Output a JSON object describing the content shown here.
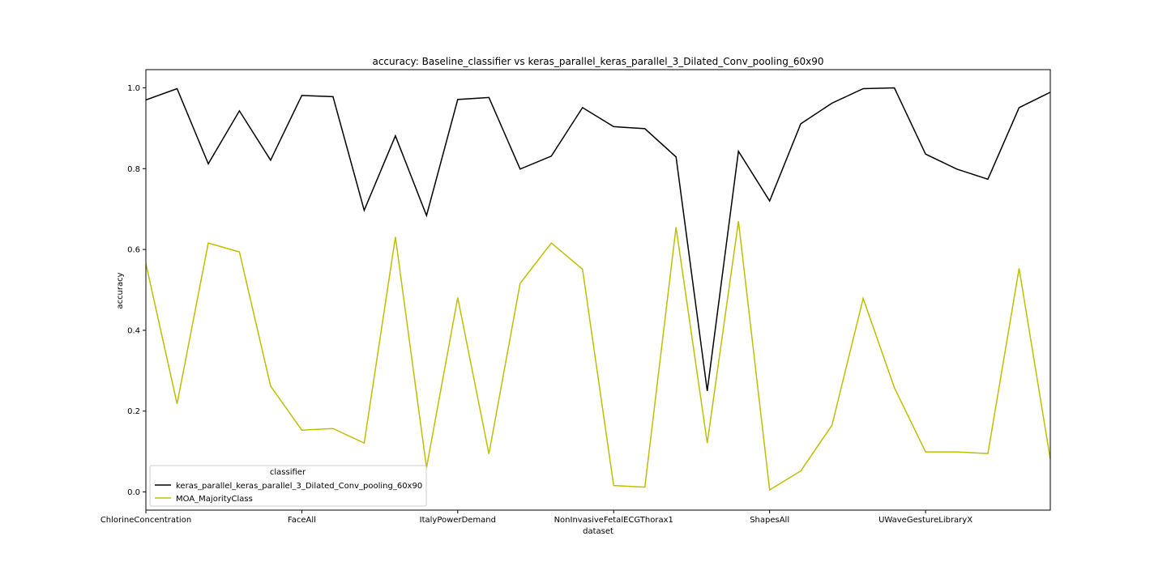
{
  "chart_data": {
    "type": "line",
    "title": "accuracy: Baseline_classifier vs keras_parallel_keras_parallel_3_Dilated_Conv_pooling_60x90",
    "xlabel": "dataset",
    "ylabel": "accuracy",
    "x_tick_labels": [
      "ChlorineConcentration",
      "FaceAll",
      "ItalyPowerDemand",
      "NonInvasiveFetalECGThorax1",
      "ShapesAll",
      "UWaveGestureLibraryX"
    ],
    "x_tick_positions": [
      0,
      5,
      10,
      15,
      20,
      25
    ],
    "x": [
      0,
      1,
      2,
      3,
      4,
      5,
      6,
      7,
      8,
      9,
      10,
      11,
      12,
      13,
      14,
      15,
      16,
      17,
      18,
      19,
      20,
      21,
      22,
      23,
      24,
      25,
      26,
      27,
      28,
      29
    ],
    "xlim": [
      0,
      29
    ],
    "ylim": [
      -0.045,
      1.045
    ],
    "y_ticks": [
      "0.0",
      "0.2",
      "0.4",
      "0.6",
      "0.8",
      "1.0"
    ],
    "grid": false,
    "legend": {
      "title": "classifier",
      "placement": "lower-left"
    },
    "series": [
      {
        "name": "keras_parallel_keras_parallel_3_Dilated_Conv_pooling_60x90",
        "color": "#000000",
        "values": [
          0.97,
          0.998,
          0.812,
          0.943,
          0.821,
          0.981,
          0.978,
          0.697,
          0.881,
          0.684,
          0.971,
          0.976,
          0.799,
          0.831,
          0.951,
          0.904,
          0.899,
          0.829,
          0.25,
          0.843,
          0.72,
          0.911,
          0.962,
          0.998,
          1.0,
          0.836,
          0.799,
          0.774,
          0.951,
          0.989
        ]
      },
      {
        "name": "MOA_MajorityClass",
        "color": "#bfbf00",
        "values": [
          0.565,
          0.218,
          0.616,
          0.594,
          0.262,
          0.153,
          0.157,
          0.121,
          0.631,
          0.06,
          0.481,
          0.094,
          0.516,
          0.616,
          0.551,
          0.016,
          0.012,
          0.655,
          0.121,
          0.67,
          0.005,
          0.052,
          0.165,
          0.479,
          0.258,
          0.099,
          0.099,
          0.095,
          0.553,
          0.081
        ]
      }
    ]
  }
}
